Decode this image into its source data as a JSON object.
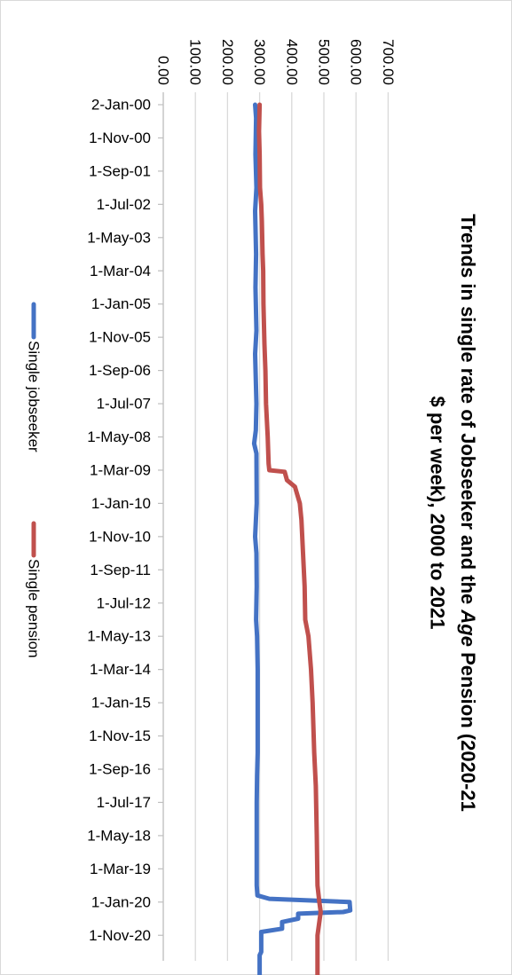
{
  "chart_data": {
    "type": "line",
    "orientation": "rotated-90-clockwise",
    "title_line1": "Trends in single rate of Jobseeker and the Age Pension (2020-21",
    "title_line2": "$ per week), 2000 to 2021",
    "title_italic_word": "Age",
    "xlabel": "",
    "ylabel": "",
    "ylim": [
      0,
      700
    ],
    "grid": true,
    "legend_position": "left",
    "y_ticks": [
      "0.00",
      "100.00",
      "200.00",
      "300.00",
      "400.00",
      "500.00",
      "600.00",
      "700.00"
    ],
    "x_ticks": [
      "2-Jan-00",
      "1-Nov-00",
      "1-Sep-01",
      "1-Jul-02",
      "1-May-03",
      "1-Mar-04",
      "1-Jan-05",
      "1-Nov-05",
      "1-Sep-06",
      "1-Jul-07",
      "1-May-08",
      "1-Mar-09",
      "1-Jan-10",
      "1-Nov-10",
      "1-Sep-11",
      "1-Jul-12",
      "1-May-13",
      "1-Mar-14",
      "1-Jan-15",
      "1-Nov-15",
      "1-Sep-16",
      "1-Jul-17",
      "1-May-18",
      "1-Mar-19",
      "1-Jan-20",
      "1-Nov-20"
    ],
    "x_end_tick_index": 26.7,
    "series": [
      {
        "name": "Single jobseeker",
        "color": "#4472C4",
        "points": [
          [
            0,
            286
          ],
          [
            0.4,
            289
          ],
          [
            1.5,
            287
          ],
          [
            2.5,
            290
          ],
          [
            3.2,
            286
          ],
          [
            4.5,
            289
          ],
          [
            5.5,
            287
          ],
          [
            6.8,
            290
          ],
          [
            7.5,
            286
          ],
          [
            9.0,
            290
          ],
          [
            9.8,
            288
          ],
          [
            10.2,
            283
          ],
          [
            10.5,
            290
          ],
          [
            12.0,
            291
          ],
          [
            13.0,
            286
          ],
          [
            13.5,
            290
          ],
          [
            14.5,
            291
          ],
          [
            15.5,
            289
          ],
          [
            16.0,
            292
          ],
          [
            17.0,
            294
          ],
          [
            19.5,
            294
          ],
          [
            20.2,
            292
          ],
          [
            21.0,
            291
          ],
          [
            23.5,
            291
          ],
          [
            23.8,
            293
          ],
          [
            23.9,
            330
          ],
          [
            24.0,
            580
          ],
          [
            24.25,
            582
          ],
          [
            24.3,
            560
          ],
          [
            24.35,
            420
          ],
          [
            24.5,
            420
          ],
          [
            24.6,
            370
          ],
          [
            24.8,
            370
          ],
          [
            24.9,
            305
          ],
          [
            25.5,
            305
          ],
          [
            25.6,
            300
          ],
          [
            26.7,
            300
          ]
        ]
      },
      {
        "name": "Single pension",
        "color": "#C0504D",
        "points": [
          [
            0,
            300
          ],
          [
            0.8,
            298
          ],
          [
            1.5,
            300
          ],
          [
            2.5,
            301
          ],
          [
            3.0,
            305
          ],
          [
            3.5,
            307
          ],
          [
            4.5,
            309
          ],
          [
            5.0,
            311
          ],
          [
            6.0,
            312
          ],
          [
            7.2,
            315
          ],
          [
            8.0,
            318
          ],
          [
            9.0,
            320
          ],
          [
            10.0,
            325
          ],
          [
            10.8,
            328
          ],
          [
            11.0,
            330
          ],
          [
            11.05,
            378
          ],
          [
            11.3,
            385
          ],
          [
            11.5,
            410
          ],
          [
            12.0,
            425
          ],
          [
            12.5,
            430
          ],
          [
            13.5,
            435
          ],
          [
            14.5,
            440
          ],
          [
            15.5,
            442
          ],
          [
            16.0,
            452
          ],
          [
            17.0,
            460
          ],
          [
            18.0,
            465
          ],
          [
            19.5,
            470
          ],
          [
            20.5,
            475
          ],
          [
            22.0,
            478
          ],
          [
            23.5,
            480
          ],
          [
            24.0,
            486
          ],
          [
            24.3,
            490
          ],
          [
            25.0,
            480
          ],
          [
            26.7,
            480
          ]
        ]
      }
    ]
  }
}
